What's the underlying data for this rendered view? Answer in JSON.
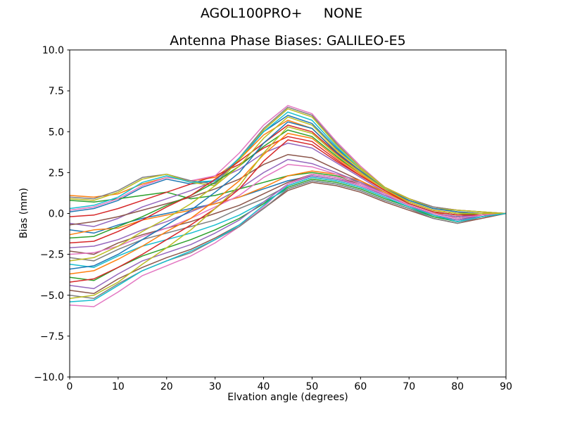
{
  "header": {
    "suptitle": "AGOL100PRO+     NONE"
  },
  "chart_data": {
    "type": "line",
    "title": "Antenna Phase Biases: GALILEO-E5",
    "xlabel": "Elvation angle (degrees)",
    "ylabel": "Bias (mm)",
    "xlim": [
      0,
      90
    ],
    "ylim": [
      -10,
      10
    ],
    "grid": false,
    "legend": "none",
    "background": "#ffffff",
    "axis_color": "#000000",
    "x_ticks": [
      {
        "value": 0,
        "label": "0"
      },
      {
        "value": 10,
        "label": "10"
      },
      {
        "value": 20,
        "label": "20"
      },
      {
        "value": 30,
        "label": "30"
      },
      {
        "value": 40,
        "label": "40"
      },
      {
        "value": 50,
        "label": "50"
      },
      {
        "value": 60,
        "label": "60"
      },
      {
        "value": 70,
        "label": "70"
      },
      {
        "value": 80,
        "label": "80"
      },
      {
        "value": 90,
        "label": "90"
      }
    ],
    "y_ticks": [
      {
        "value": 10.0,
        "label": "10.0"
      },
      {
        "value": 7.5,
        "label": "7.5"
      },
      {
        "value": 5.0,
        "label": "5.0"
      },
      {
        "value": 2.5,
        "label": "2.5"
      },
      {
        "value": 0.0,
        "label": "0.0"
      },
      {
        "value": -2.5,
        "label": "−2.5"
      },
      {
        "value": -5.0,
        "label": "−5.0"
      },
      {
        "value": -7.5,
        "label": "−7.5"
      },
      {
        "value": -10.0,
        "label": "−10.0"
      }
    ],
    "x": [
      0,
      5,
      10,
      15,
      20,
      25,
      30,
      35,
      40,
      45,
      50,
      55,
      60,
      65,
      70,
      75,
      80,
      85,
      90
    ],
    "series": [
      {
        "name": "line-01",
        "color": "#1f77b4",
        "values": [
          0.1,
          0.3,
          0.8,
          1.6,
          2.1,
          1.8,
          2.0,
          3.3,
          5.0,
          6.0,
          5.5,
          4.0,
          2.7,
          1.5,
          0.8,
          0.3,
          0.1,
          0.0,
          0.0
        ]
      },
      {
        "name": "line-02",
        "color": "#ff7f0e",
        "values": [
          1.1,
          1.0,
          1.2,
          1.8,
          2.2,
          2.0,
          2.2,
          3.3,
          4.8,
          5.7,
          5.2,
          3.8,
          2.6,
          1.5,
          0.9,
          0.4,
          0.2,
          0.1,
          0.0
        ]
      },
      {
        "name": "line-03",
        "color": "#2ca02c",
        "values": [
          0.8,
          0.7,
          0.9,
          1.1,
          1.3,
          0.9,
          1.1,
          1.5,
          1.9,
          2.3,
          2.5,
          2.3,
          1.9,
          1.2,
          0.5,
          0.0,
          -0.2,
          -0.1,
          0.0
        ]
      },
      {
        "name": "line-04",
        "color": "#d62728",
        "values": [
          -0.2,
          -0.1,
          0.3,
          0.8,
          1.3,
          1.8,
          2.3,
          3.0,
          4.0,
          4.7,
          4.4,
          3.3,
          2.3,
          1.4,
          0.7,
          0.2,
          0.0,
          0.0,
          0.0
        ]
      },
      {
        "name": "line-05",
        "color": "#9467bd",
        "values": [
          -0.6,
          -0.8,
          -0.3,
          0.4,
          0.9,
          1.4,
          2.0,
          2.7,
          3.7,
          4.3,
          4.0,
          3.1,
          2.2,
          1.3,
          0.6,
          0.1,
          -0.1,
          -0.1,
          0.0
        ]
      },
      {
        "name": "line-06",
        "color": "#8c564b",
        "values": [
          -0.7,
          -0.5,
          -0.2,
          0.2,
          0.6,
          1.0,
          1.5,
          2.1,
          3.0,
          3.6,
          3.4,
          2.7,
          2.0,
          1.2,
          0.5,
          0.0,
          -0.2,
          -0.1,
          0.0
        ]
      },
      {
        "name": "line-07",
        "color": "#e377c2",
        "values": [
          0.2,
          0.4,
          0.9,
          1.7,
          2.2,
          2.0,
          2.3,
          3.7,
          5.4,
          6.6,
          6.1,
          4.4,
          2.9,
          1.6,
          0.9,
          0.4,
          0.2,
          0.1,
          0.0
        ]
      },
      {
        "name": "line-08",
        "color": "#7f7f7f",
        "values": [
          1.0,
          0.9,
          1.4,
          2.2,
          2.4,
          2.0,
          1.8,
          3.4,
          5.2,
          6.5,
          6.0,
          4.3,
          2.8,
          1.6,
          0.9,
          0.4,
          0.2,
          0.1,
          0.0
        ]
      },
      {
        "name": "line-09",
        "color": "#bcbd22",
        "values": [
          0.9,
          0.8,
          1.3,
          2.1,
          2.4,
          1.9,
          1.7,
          3.3,
          5.1,
          6.4,
          5.9,
          4.2,
          2.8,
          1.6,
          0.9,
          0.3,
          0.2,
          0.1,
          0.0
        ]
      },
      {
        "name": "line-10",
        "color": "#17becf",
        "values": [
          0.3,
          0.5,
          1.0,
          1.9,
          2.3,
          1.9,
          2.0,
          3.4,
          5.0,
          6.2,
          5.7,
          4.1,
          2.7,
          1.5,
          0.8,
          0.3,
          0.1,
          0.0,
          0.0
        ]
      },
      {
        "name": "line-11",
        "color": "#1f77b4",
        "values": [
          -1.0,
          -1.2,
          -0.7,
          -0.3,
          0.0,
          0.3,
          0.6,
          1.0,
          1.5,
          2.0,
          2.3,
          2.1,
          1.7,
          1.1,
          0.5,
          -0.1,
          -0.4,
          -0.1,
          0.0
        ]
      },
      {
        "name": "line-12",
        "color": "#ff7f0e",
        "values": [
          -1.3,
          -1.0,
          -0.9,
          -0.4,
          -0.1,
          0.2,
          0.6,
          1.0,
          1.6,
          2.3,
          2.6,
          2.4,
          2.0,
          1.3,
          0.6,
          0.1,
          -0.3,
          -0.1,
          0.0
        ]
      },
      {
        "name": "line-13",
        "color": "#2ca02c",
        "values": [
          -1.5,
          -1.4,
          -0.8,
          -0.2,
          0.5,
          1.1,
          1.9,
          2.9,
          4.1,
          5.1,
          4.7,
          3.5,
          2.4,
          1.4,
          0.6,
          0.1,
          -0.1,
          0.0,
          0.0
        ]
      },
      {
        "name": "line-14",
        "color": "#d62728",
        "values": [
          -1.8,
          -1.7,
          -1.1,
          -0.4,
          0.4,
          1.1,
          2.1,
          3.2,
          4.3,
          5.4,
          5.0,
          3.7,
          2.5,
          1.5,
          0.7,
          0.2,
          0.0,
          0.0,
          0.0
        ]
      },
      {
        "name": "line-15",
        "color": "#9467bd",
        "values": [
          -2.1,
          -2.0,
          -1.6,
          -1.0,
          -0.5,
          0.1,
          0.7,
          1.5,
          2.5,
          3.3,
          3.05,
          2.5,
          1.9,
          1.2,
          0.5,
          0.0,
          -0.2,
          -0.1,
          0.0
        ]
      },
      {
        "name": "line-16",
        "color": "#8c564b",
        "values": [
          -2.3,
          -2.5,
          -1.8,
          -1.3,
          -0.9,
          -0.5,
          0.0,
          0.5,
          1.2,
          1.9,
          2.4,
          2.2,
          1.8,
          1.2,
          0.5,
          0.0,
          -0.3,
          -0.1,
          0.0
        ]
      },
      {
        "name": "line-17",
        "color": "#e377c2",
        "values": [
          -2.5,
          -2.4,
          -2.0,
          -1.4,
          -0.9,
          -0.3,
          0.4,
          1.1,
          2.2,
          3.0,
          2.85,
          2.4,
          1.8,
          1.2,
          0.5,
          0.0,
          -0.3,
          -0.1,
          0.0
        ]
      },
      {
        "name": "line-18",
        "color": "#7f7f7f",
        "values": [
          -2.7,
          -2.9,
          -2.2,
          -1.6,
          -1.2,
          -0.8,
          -0.4,
          0.3,
          0.9,
          1.7,
          2.2,
          2.0,
          1.6,
          1.0,
          0.4,
          -0.1,
          -0.4,
          -0.2,
          0.0
        ]
      },
      {
        "name": "line-19",
        "color": "#bcbd22",
        "values": [
          -2.9,
          -2.7,
          -2.0,
          -1.1,
          -0.3,
          0.6,
          1.7,
          2.9,
          4.6,
          5.9,
          5.4,
          3.9,
          2.7,
          1.5,
          0.8,
          0.3,
          0.1,
          0.0,
          0.0
        ]
      },
      {
        "name": "line-20",
        "color": "#17becf",
        "values": [
          -3.1,
          -3.3,
          -2.6,
          -2.0,
          -1.6,
          -1.2,
          -0.7,
          -0.1,
          0.7,
          1.5,
          2.0,
          1.8,
          1.4,
          0.8,
          0.3,
          -0.2,
          -0.5,
          -0.2,
          0.0
        ]
      },
      {
        "name": "line-21",
        "color": "#1f77b4",
        "values": [
          -3.4,
          -3.2,
          -2.5,
          -1.6,
          -0.7,
          0.2,
          1.3,
          2.5,
          4.3,
          5.6,
          5.2,
          3.75,
          2.6,
          1.5,
          0.8,
          0.3,
          0.1,
          0.0,
          0.0
        ]
      },
      {
        "name": "line-22",
        "color": "#ff7f0e",
        "values": [
          -3.7,
          -3.5,
          -2.8,
          -2.0,
          -1.1,
          -0.3,
          0.8,
          2.0,
          3.6,
          4.9,
          4.6,
          3.4,
          2.4,
          1.4,
          0.7,
          0.2,
          0.0,
          0.0,
          0.0
        ]
      },
      {
        "name": "line-23",
        "color": "#2ca02c",
        "values": [
          -3.9,
          -4.1,
          -3.3,
          -2.6,
          -2.1,
          -1.6,
          -1.0,
          -0.3,
          0.6,
          1.6,
          2.1,
          1.9,
          1.5,
          0.9,
          0.4,
          -0.2,
          -0.5,
          -0.2,
          0.0
        ]
      },
      {
        "name": "line-24",
        "color": "#d62728",
        "values": [
          -4.2,
          -4.0,
          -3.3,
          -2.5,
          -1.6,
          -0.7,
          0.3,
          1.5,
          3.2,
          4.5,
          4.2,
          3.2,
          2.3,
          1.4,
          0.6,
          0.1,
          -0.1,
          -0.1,
          0.0
        ]
      },
      {
        "name": "line-25",
        "color": "#9467bd",
        "values": [
          -4.4,
          -4.6,
          -3.7,
          -2.9,
          -2.4,
          -1.9,
          -1.2,
          -0.4,
          0.7,
          1.8,
          2.3,
          2.1,
          1.7,
          1.1,
          0.5,
          -0.1,
          -0.4,
          -0.2,
          0.0
        ]
      },
      {
        "name": "line-26",
        "color": "#8c564b",
        "values": [
          -4.7,
          -4.9,
          -4.0,
          -3.3,
          -2.7,
          -2.2,
          -1.5,
          -0.7,
          0.3,
          1.4,
          1.9,
          1.7,
          1.3,
          0.7,
          0.2,
          -0.3,
          -0.6,
          -0.3,
          0.0
        ]
      },
      {
        "name": "line-27",
        "color": "#e377c2",
        "values": [
          -5.6,
          -5.7,
          -4.8,
          -3.8,
          -3.2,
          -2.6,
          -1.8,
          -0.8,
          0.4,
          1.8,
          2.4,
          2.2,
          1.7,
          1.2,
          0.5,
          0.0,
          -0.3,
          -0.1,
          0.0
        ]
      },
      {
        "name": "line-28",
        "color": "#7f7f7f",
        "values": [
          -5.0,
          -5.2,
          -4.3,
          -3.5,
          -2.9,
          -2.4,
          -1.6,
          -0.8,
          0.3,
          1.5,
          2.0,
          1.8,
          1.4,
          0.8,
          0.3,
          -0.3,
          -0.6,
          -0.2,
          0.0
        ]
      },
      {
        "name": "line-29",
        "color": "#bcbd22",
        "values": [
          -5.2,
          -5.0,
          -4.2,
          -3.1,
          -2.1,
          -1.0,
          0.3,
          1.7,
          3.7,
          5.3,
          4.9,
          3.6,
          2.5,
          1.5,
          0.7,
          0.2,
          0.0,
          0.0,
          0.0
        ]
      },
      {
        "name": "line-30",
        "color": "#17becf",
        "values": [
          -5.4,
          -5.3,
          -4.4,
          -3.5,
          -2.9,
          -2.3,
          -1.6,
          -0.7,
          0.5,
          1.7,
          2.2,
          2.0,
          1.6,
          1.0,
          0.4,
          -0.1,
          -0.5,
          -0.2,
          0.0
        ]
      }
    ]
  }
}
